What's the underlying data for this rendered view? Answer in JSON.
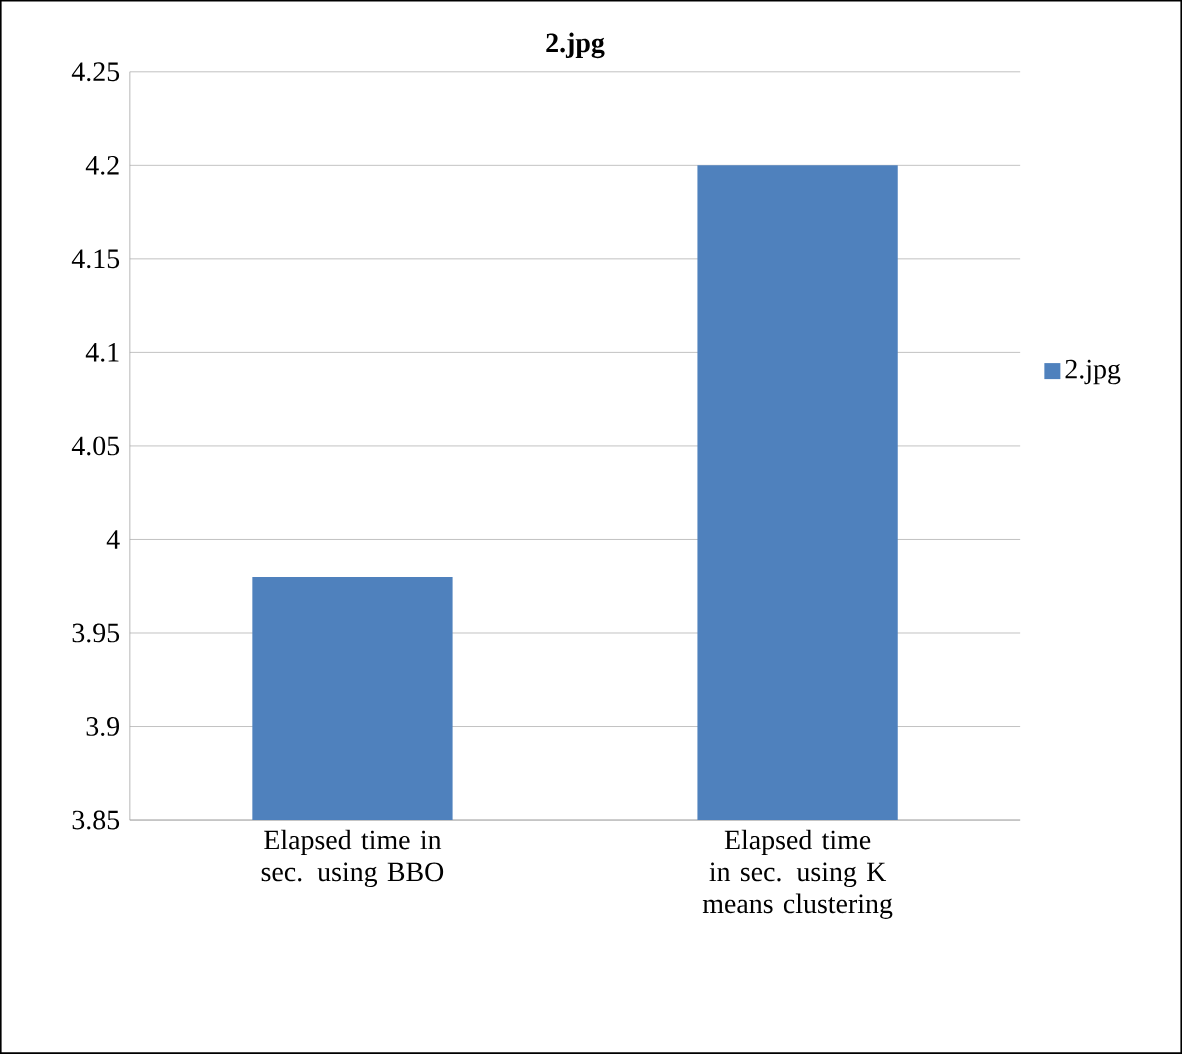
{
  "chart_data": {
    "type": "bar",
    "title": "2.jpg",
    "categories": [
      "Elapsed time in sec. using BBO",
      "Elapsed time in sec. using K means clustering"
    ],
    "series": [
      {
        "name": "2.jpg",
        "color": "#4f81bd",
        "values": [
          3.98,
          4.2
        ]
      }
    ],
    "ylim": [
      3.85,
      4.25
    ],
    "yticks": [
      3.85,
      3.9,
      3.95,
      4,
      4.05,
      4.1,
      4.15,
      4.2,
      4.25
    ],
    "grid": "y",
    "legend": "right"
  }
}
